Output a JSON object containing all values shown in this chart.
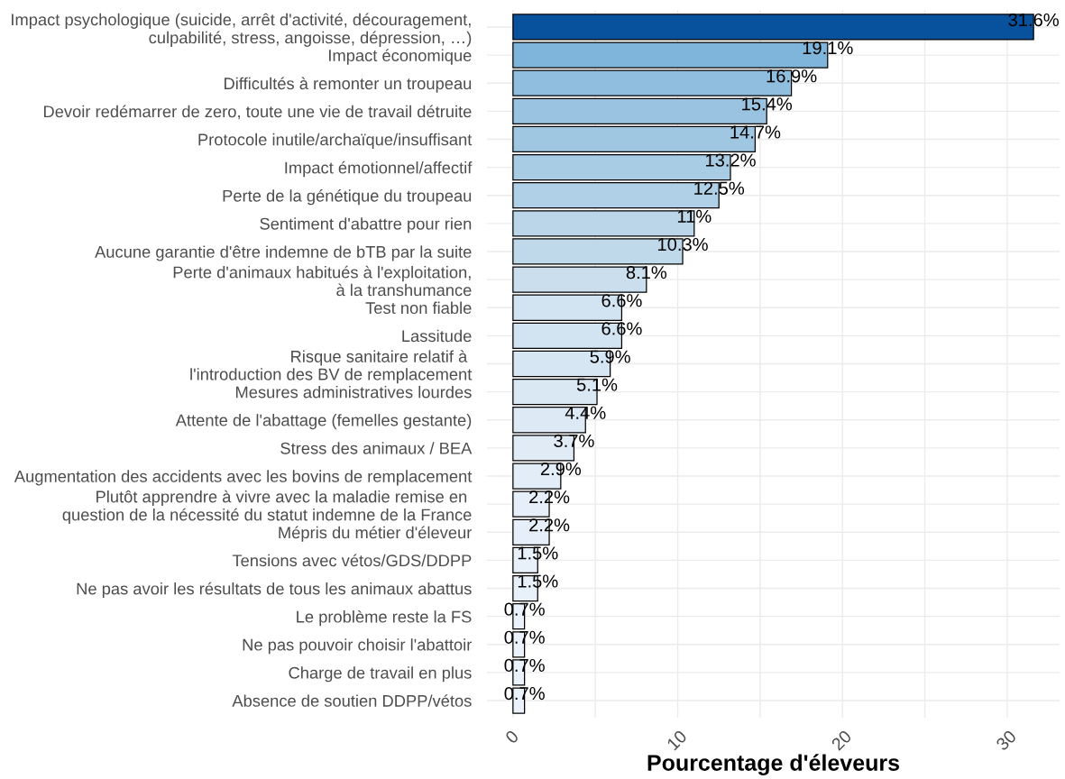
{
  "chart_data": {
    "type": "bar",
    "orientation": "horizontal",
    "categories": [
      "Impact psychologique (suicide, arrêt d'activité, découragement,\nculpabilité, stress, angoisse, dépression, …)",
      "Impact économique",
      "Difficultés à remonter un troupeau",
      "Devoir redémarrer de zero, toute une vie de travail détruite",
      "Protocole inutile/archaïque/insuffisant",
      "Impact émotionnel/affectif",
      "Perte de la génétique du troupeau",
      "Sentiment d'abattre pour rien",
      "Aucune garantie d'être indemne de bTB par la suite",
      "Perte d'animaux habitués à l'exploitation,\nà la transhumance",
      "Test non fiable",
      "Lassitude",
      "Risque sanitaire relatif à \nl'introduction des BV de remplacement",
      "Mesures administratives lourdes",
      "Attente de l'abattage (femelles gestante)",
      "Stress des animaux / BEA",
      "Augmentation des accidents avec les bovins de remplacement",
      "Plutôt apprendre à vivre avec la maladie remise en \nquestion de la nécessité du statut indemne de la France",
      "Mépris du métier d'éleveur",
      "Tensions avec vétos/GDS/DDPP",
      "Ne pas avoir les résultats de tous les animaux abattus",
      "Le problème reste la FS",
      "Ne pas pouvoir choisir l'abattoir",
      "Charge de travail en plus",
      "Absence de soutien DDPP/vétos"
    ],
    "values": [
      31.6,
      19.1,
      16.9,
      15.4,
      14.7,
      13.2,
      12.5,
      11,
      10.3,
      8.1,
      6.6,
      6.6,
      5.9,
      5.1,
      4.4,
      3.7,
      2.9,
      2.2,
      2.2,
      1.5,
      1.5,
      0.7,
      0.7,
      0.7,
      0.7
    ],
    "value_labels": [
      "31.6%",
      "19.1%",
      "16.9%",
      "15.4%",
      "14.7%",
      "13.2%",
      "12.5%",
      "11%",
      "10.3%",
      "8.1%",
      "6.6%",
      "6.6%",
      "5.9%",
      "5.1%",
      "4.4%",
      "3.7%",
      "2.9%",
      "2.2%",
      "2.2%",
      "1.5%",
      "1.5%",
      "0.7%",
      "0.7%",
      "0.7%",
      "0.7%"
    ],
    "colors": [
      "#08519c",
      "#7fb5da",
      "#8fbedf",
      "#99c3e1",
      "#a0c7e2",
      "#a9cce5",
      "#afd0e6",
      "#bad6e8",
      "#bfd9ea",
      "#cadeee",
      "#d2e3f1",
      "#d2e3f1",
      "#d6e6f2",
      "#dae8f4",
      "#dde9f5",
      "#e0ebf6",
      "#e3edf8",
      "#e6eef9",
      "#e6eef9",
      "#e8f0fa",
      "#e8f0fa",
      "#ebf2fb",
      "#ebf2fb",
      "#ebf2fb",
      "#ebf2fb"
    ],
    "xlabel": "Pourcentage d'éleveurs",
    "xlim": [
      -1.58,
      33.18
    ],
    "xticks": [
      0,
      {
        "value": 5,
        "label": null
      },
      10,
      {
        "value": 15,
        "label": null
      },
      20,
      {
        "value": 25,
        "label": null
      },
      30
    ],
    "grid": true
  }
}
